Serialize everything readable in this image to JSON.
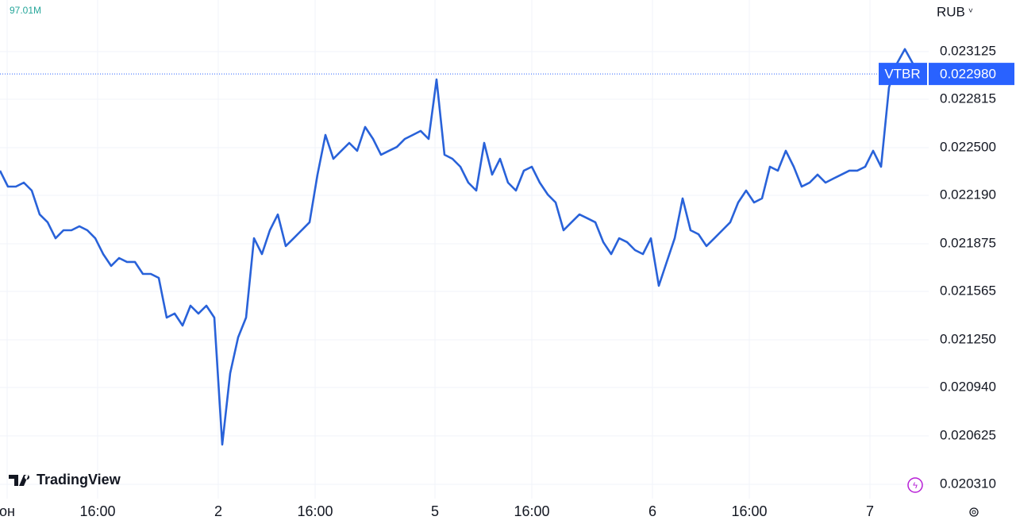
{
  "chart_data": {
    "type": "line",
    "symbol": "VTBR",
    "currency": "RUB",
    "volume_label": "97.01M",
    "brand": "TradingView",
    "series": [
      {
        "name": "VTBR",
        "color": "#2962d9",
        "values": [
          0.022351,
          0.022247,
          0.022247,
          0.022273,
          0.022221,
          0.022066,
          0.022015,
          0.021911,
          0.021963,
          0.021963,
          0.021989,
          0.021963,
          0.021911,
          0.021808,
          0.021731,
          0.021782,
          0.021757,
          0.021757,
          0.021679,
          0.021679,
          0.021653,
          0.021395,
          0.021421,
          0.021343,
          0.021472,
          0.021421,
          0.021472,
          0.021395,
          0.020569,
          0.021033,
          0.021266,
          0.021395,
          0.021911,
          0.021808,
          0.021963,
          0.022066,
          0.02186,
          0.021911,
          0.021963,
          0.022015,
          0.022325,
          0.022583,
          0.022428,
          0.02248,
          0.022531,
          0.02248,
          0.022635,
          0.022557,
          0.022454,
          0.02248,
          0.022505,
          0.022557,
          0.022583,
          0.022609,
          0.022557,
          0.022944,
          0.022454,
          0.022428,
          0.022376,
          0.022273,
          0.022221,
          0.022531,
          0.022325,
          0.022428,
          0.022273,
          0.022221,
          0.022351,
          0.022376,
          0.022273,
          0.022196,
          0.022144,
          0.021963,
          0.022015,
          0.022066,
          0.022041,
          0.022015,
          0.021886,
          0.021808,
          0.021911,
          0.021886,
          0.021834,
          0.021808,
          0.021911,
          0.021602,
          0.021757,
          0.021911,
          0.02217,
          0.021963,
          0.021937,
          0.02186,
          0.021911,
          0.021963,
          0.022015,
          0.022144,
          0.022221,
          0.022144,
          0.02217,
          0.022376,
          0.022351,
          0.02248,
          0.022376,
          0.022247,
          0.022273,
          0.022325,
          0.022273,
          0.022299,
          0.022325,
          0.022351,
          0.022351,
          0.022376,
          0.02248,
          0.022376,
          0.022893,
          0.023048,
          0.023141,
          0.023048
        ]
      }
    ],
    "last_price": {
      "value": 0.02298,
      "label": "0.022980"
    },
    "xlim": [
      0,
      117
    ],
    "xticks": [
      {
        "value": 0.9,
        "label": "он"
      },
      {
        "value": 12.3,
        "label": "16:00"
      },
      {
        "value": 27.5,
        "label": "2"
      },
      {
        "value": 39.7,
        "label": "16:00"
      },
      {
        "value": 54.8,
        "label": "5"
      },
      {
        "value": 67,
        "label": "16:00"
      },
      {
        "value": 82.2,
        "label": "6"
      },
      {
        "value": 94.4,
        "label": "16:00"
      },
      {
        "value": 109.6,
        "label": "7"
      }
    ],
    "ylim": [
      0.020217,
      0.023461
    ],
    "yticks": [
      0.023125,
      0.022815,
      {
        "value": 0.0225,
        "label": "0.022500"
      },
      {
        "value": 0.02219,
        "label": "0.022190"
      },
      0.021875,
      0.021565,
      {
        "value": 0.02125,
        "label": "0.021250"
      },
      {
        "value": 0.02094,
        "label": "0.020940"
      },
      0.020625,
      {
        "value": 0.02031,
        "label": "0.020310"
      }
    ],
    "grid": true
  }
}
